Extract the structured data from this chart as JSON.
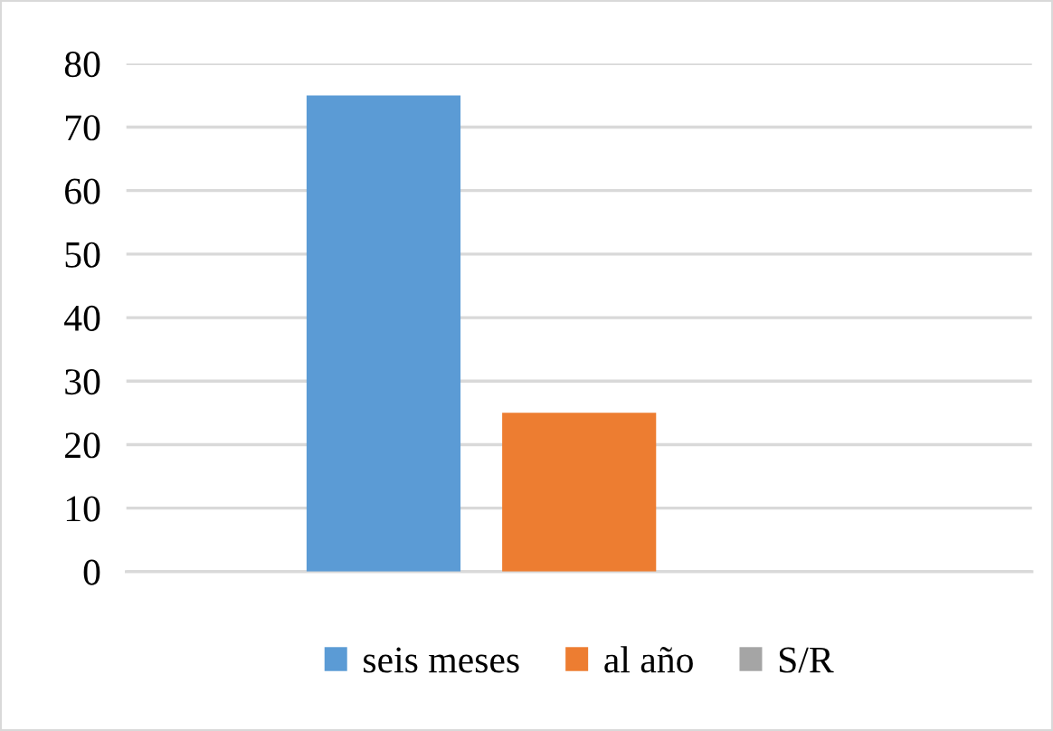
{
  "chart_data": {
    "type": "bar",
    "categories": [
      null
    ],
    "series": [
      {
        "name": "seis meses",
        "color": "#5b9bd5",
        "values": [
          75
        ]
      },
      {
        "name": "al año",
        "color": "#ed7d31",
        "values": [
          25
        ]
      },
      {
        "name": "S/R",
        "color": "#a5a5a5",
        "values": [
          0
        ]
      }
    ],
    "ylim": [
      0,
      80
    ],
    "yticks": [
      0,
      10,
      20,
      30,
      40,
      50,
      60,
      70,
      80
    ],
    "grid": "y",
    "legend": "bottom"
  }
}
